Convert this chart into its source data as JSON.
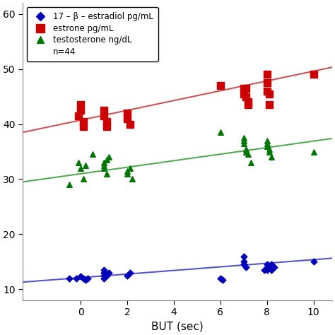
{
  "title": "",
  "xlabel": "BUT (sec)",
  "ylabel": "",
  "xlim": [
    -2.5,
    10.8
  ],
  "ylim": [
    8,
    62
  ],
  "yticks": [
    10,
    20,
    30,
    40,
    50,
    60
  ],
  "xticks": [
    0,
    2,
    4,
    6,
    8,
    10
  ],
  "n_label": "n=44",
  "background_color": "#ffffff",
  "blue_points": {
    "x": [
      -0.5,
      -0.2,
      0.0,
      0.1,
      0.2,
      0.3,
      1.0,
      1.0,
      1.0,
      1.0,
      1.1,
      1.2,
      2.0,
      2.1,
      6.0,
      6.1,
      7.0,
      7.0,
      7.0,
      7.1,
      7.9,
      8.0,
      8.0,
      8.0,
      8.1,
      8.1,
      8.2,
      8.2,
      8.3,
      10.0
    ],
    "y": [
      12.0,
      12.0,
      12.3,
      12.0,
      11.7,
      12.0,
      12.5,
      13.0,
      13.5,
      12.0,
      12.5,
      13.0,
      12.5,
      13.0,
      12.0,
      11.7,
      14.5,
      16.0,
      15.0,
      14.0,
      13.5,
      14.0,
      14.5,
      13.5,
      14.0,
      14.0,
      14.5,
      13.5,
      14.0,
      15.0
    ],
    "color": "#0000bb",
    "marker": "D",
    "markersize": 20
  },
  "red_points": {
    "x": [
      -0.1,
      0.0,
      0.0,
      0.1,
      0.1,
      1.0,
      1.0,
      1.1,
      1.1,
      2.0,
      2.0,
      2.1,
      6.0,
      7.0,
      7.0,
      7.1,
      7.1,
      7.2,
      7.2,
      8.0,
      8.0,
      8.0,
      8.1,
      8.1,
      10.0
    ],
    "y": [
      41.5,
      42.5,
      43.5,
      40.5,
      39.5,
      41.5,
      42.5,
      40.5,
      39.5,
      42.0,
      41.0,
      40.0,
      47.0,
      46.5,
      45.5,
      45.0,
      46.5,
      44.0,
      43.5,
      49.0,
      47.5,
      46.0,
      45.5,
      43.5,
      49.0
    ],
    "color": "#cc0000",
    "marker": "s",
    "markersize": 55
  },
  "green_points": {
    "x": [
      -0.5,
      -0.1,
      0.0,
      0.1,
      0.2,
      0.5,
      1.0,
      1.0,
      1.0,
      1.1,
      1.1,
      1.2,
      2.0,
      2.0,
      2.1,
      2.2,
      6.0,
      7.0,
      7.0,
      7.0,
      7.1,
      7.1,
      7.2,
      7.3,
      8.0,
      8.0,
      8.0,
      8.1,
      8.1,
      8.2,
      10.0
    ],
    "y": [
      29.0,
      33.0,
      32.0,
      30.0,
      32.5,
      34.5,
      33.0,
      32.0,
      32.5,
      31.0,
      33.5,
      34.0,
      31.0,
      31.5,
      32.0,
      30.0,
      38.5,
      37.5,
      37.0,
      36.5,
      35.5,
      35.0,
      34.5,
      33.0,
      37.0,
      36.5,
      36.0,
      35.5,
      35.0,
      34.0,
      35.0
    ],
    "color": "#007700",
    "marker": "^",
    "markersize": 30
  },
  "blue_line": {
    "x": [
      -2.5,
      11
    ],
    "y": [
      11.3,
      15.7
    ],
    "color": "#5555cc",
    "linewidth": 1.5
  },
  "red_line": {
    "x": [
      -2.5,
      11
    ],
    "y": [
      38.5,
      50.5
    ],
    "color": "#cc5555",
    "linewidth": 1.5
  },
  "green_line": {
    "x": [
      -2.5,
      11
    ],
    "y": [
      29.5,
      37.5
    ],
    "color": "#55aa55",
    "linewidth": 1.5
  },
  "legend_labels": [
    "17 – β – estradiol pg/mL",
    "estrone pg/mL",
    "testosterone ng/dL"
  ],
  "legend_colors": [
    "#0000bb",
    "#cc0000",
    "#007700"
  ],
  "legend_markers": [
    "D",
    "s",
    "^"
  ],
  "legend_markersizes": [
    6,
    8,
    7
  ]
}
